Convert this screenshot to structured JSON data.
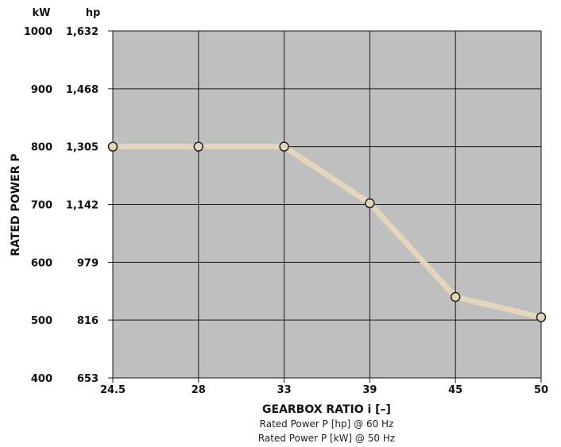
{
  "chart_data": {
    "type": "line",
    "title": "",
    "xlabel": "GEARBOX RATIO i [–]",
    "ylabel": "RATED POWER P",
    "y_units": {
      "left": "kW",
      "right": "hp"
    },
    "x": [
      "24.5",
      "28",
      "33",
      "39",
      "45",
      "50"
    ],
    "series": [
      {
        "values": [
          800,
          800,
          800,
          702,
          540,
          505
        ]
      }
    ],
    "ylim": [
      400,
      1000
    ],
    "y_ticks_kw": [
      "1000",
      "900",
      "800",
      "700",
      "600",
      "500",
      "400"
    ],
    "y_ticks_hp": [
      "1,632",
      "1,468",
      "1,305",
      "1,142",
      "979",
      "816",
      "653"
    ],
    "notes": [
      "Rated Power P [hp] @ 60 Hz",
      "Rated Power P [kW] @ 50 Hz"
    ],
    "grid": true,
    "colors": {
      "plot_background": "#bfbfbf",
      "grid": "#1a1a1a",
      "line": "#e5d5bb",
      "marker_fill": "#e5d5bb",
      "marker_stroke": "#222222"
    }
  }
}
